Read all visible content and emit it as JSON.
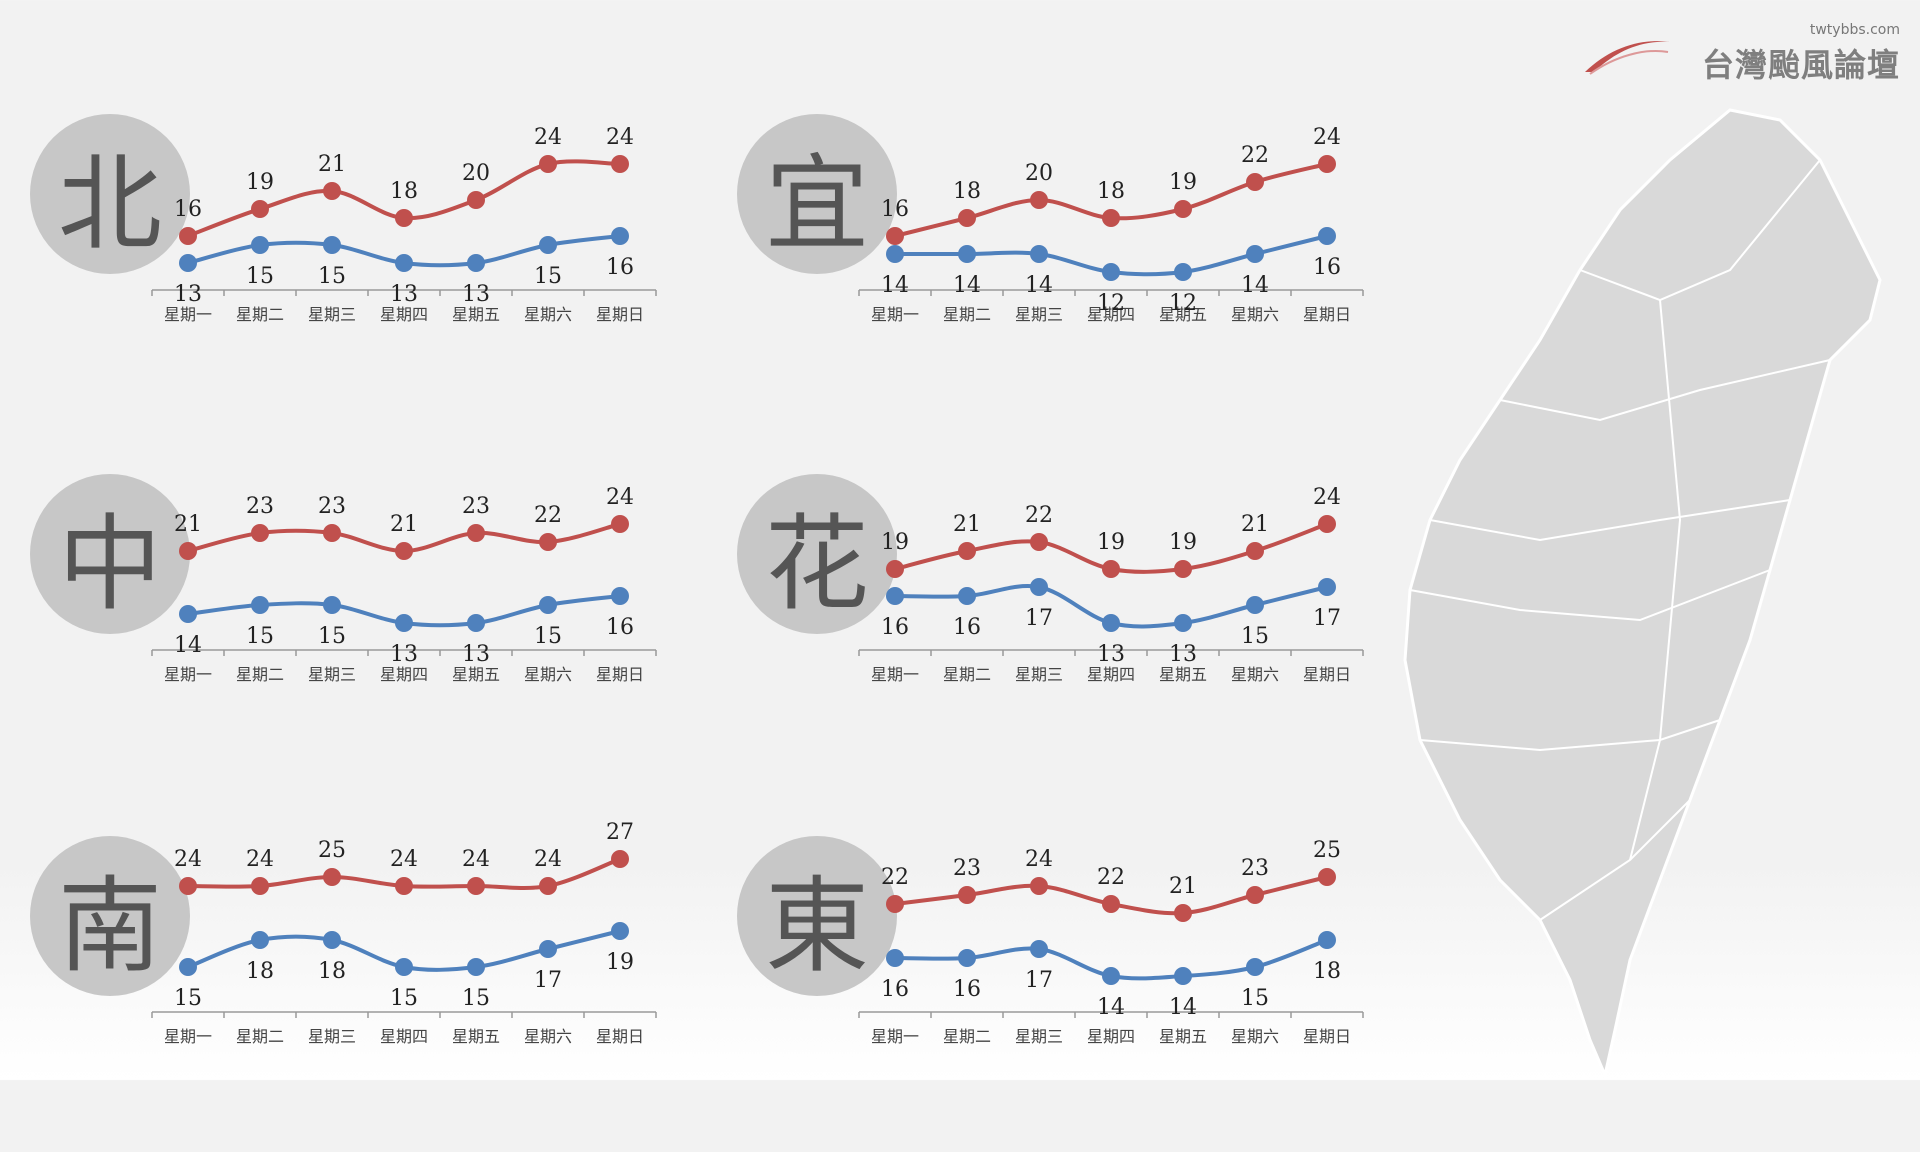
{
  "logo": {
    "name": "台灣颱風論壇",
    "url": "twtybbs.com"
  },
  "colors": {
    "high": "#c0504d",
    "low": "#4f81bd",
    "badge": "#c7c7c7"
  },
  "chart_data": [
    {
      "type": "line",
      "region": "北",
      "categories": [
        "星期一",
        "星期二",
        "星期三",
        "星期四",
        "星期五",
        "星期六",
        "星期日"
      ],
      "series": [
        {
          "values": [
            16,
            19,
            21,
            18,
            20,
            24,
            24
          ]
        },
        {
          "values": [
            13,
            15,
            15,
            13,
            13,
            15,
            16
          ]
        }
      ]
    },
    {
      "type": "line",
      "region": "宜",
      "categories": [
        "星期一",
        "星期二",
        "星期三",
        "星期四",
        "星期五",
        "星期六",
        "星期日"
      ],
      "series": [
        {
          "values": [
            16,
            18,
            20,
            18,
            19,
            22,
            24
          ]
        },
        {
          "values": [
            14,
            14,
            14,
            12,
            12,
            14,
            16
          ]
        }
      ]
    },
    {
      "type": "line",
      "region": "中",
      "categories": [
        "星期一",
        "星期二",
        "星期三",
        "星期四",
        "星期五",
        "星期六",
        "星期日"
      ],
      "series": [
        {
          "values": [
            21,
            23,
            23,
            21,
            23,
            22,
            24
          ]
        },
        {
          "values": [
            14,
            15,
            15,
            13,
            13,
            15,
            16
          ]
        }
      ]
    },
    {
      "type": "line",
      "region": "花",
      "categories": [
        "星期一",
        "星期二",
        "星期三",
        "星期四",
        "星期五",
        "星期六",
        "星期日"
      ],
      "series": [
        {
          "values": [
            19,
            21,
            22,
            19,
            19,
            21,
            24
          ]
        },
        {
          "values": [
            16,
            16,
            17,
            13,
            13,
            15,
            17
          ]
        }
      ]
    },
    {
      "type": "line",
      "region": "南",
      "categories": [
        "星期一",
        "星期二",
        "星期三",
        "星期四",
        "星期五",
        "星期六",
        "星期日"
      ],
      "series": [
        {
          "values": [
            24,
            24,
            25,
            24,
            24,
            24,
            27
          ]
        },
        {
          "values": [
            15,
            18,
            18,
            15,
            15,
            17,
            19
          ]
        }
      ]
    },
    {
      "type": "line",
      "region": "東",
      "categories": [
        "星期一",
        "星期二",
        "星期三",
        "星期四",
        "星期五",
        "星期六",
        "星期日"
      ],
      "series": [
        {
          "values": [
            22,
            23,
            24,
            22,
            21,
            23,
            25
          ]
        },
        {
          "values": [
            16,
            16,
            17,
            14,
            14,
            15,
            18
          ]
        }
      ]
    }
  ]
}
